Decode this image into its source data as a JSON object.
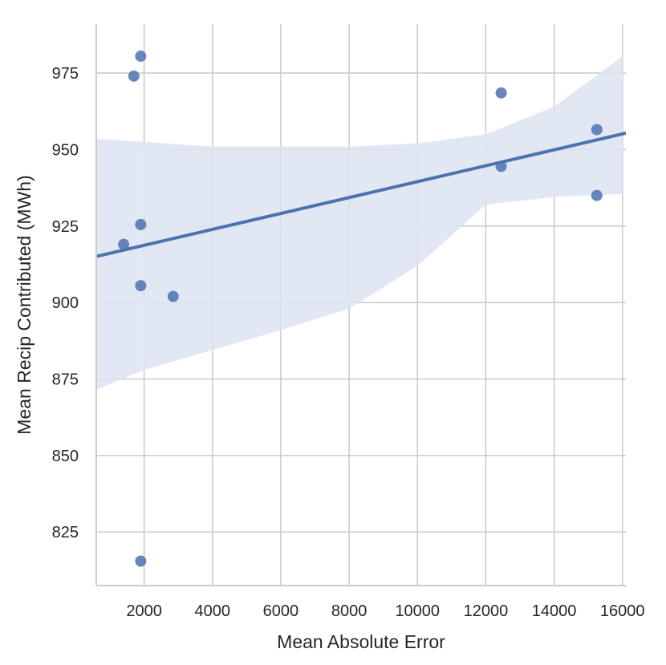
{
  "chart_data": {
    "type": "scatter",
    "title": "",
    "xlabel": "Mean Absolute Error",
    "ylabel": "Mean Recip Contributed (MWh)",
    "xlim": [
      600,
      16100
    ],
    "ylim": [
      807.5,
      991
    ],
    "x_ticks": [
      2000,
      4000,
      6000,
      8000,
      10000,
      12000,
      14000,
      16000
    ],
    "y_ticks": [
      825,
      850,
      875,
      900,
      925,
      950,
      975
    ],
    "grid": true,
    "points": [
      {
        "x": 1900,
        "y": 980.5
      },
      {
        "x": 1700,
        "y": 974
      },
      {
        "x": 1900,
        "y": 925.5
      },
      {
        "x": 1400,
        "y": 919
      },
      {
        "x": 1900,
        "y": 905.5
      },
      {
        "x": 2850,
        "y": 902
      },
      {
        "x": 1900,
        "y": 815.5
      },
      {
        "x": 12450,
        "y": 968.5
      },
      {
        "x": 12450,
        "y": 944.5
      },
      {
        "x": 15250,
        "y": 956.5
      },
      {
        "x": 15250,
        "y": 935
      }
    ],
    "regression": {
      "intercept": 913.5,
      "slope": 0.0026
    },
    "confidence_band": {
      "x": [
        600,
        2000,
        4000,
        6000,
        8000,
        10000,
        12000,
        14000,
        16000
      ],
      "upper": [
        953.5,
        952.5,
        951,
        951,
        951,
        952,
        955,
        964,
        980.5
      ],
      "lower": [
        871.5,
        878,
        884.5,
        891,
        898,
        912,
        932,
        934.5,
        935.5
      ]
    },
    "colors": {
      "points": "#4c72b0",
      "line": "#4c72b0",
      "band": "#dce4f1"
    }
  }
}
